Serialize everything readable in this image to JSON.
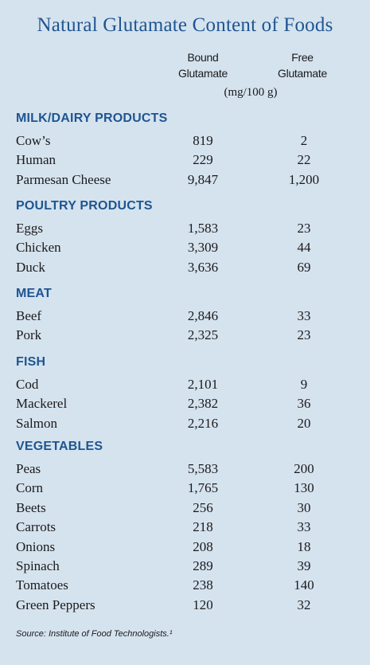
{
  "title": "Natural Glutamate Content of Foods",
  "columns": {
    "bound_line1": "Bound",
    "bound_line2": "Glutamate",
    "free_line1": "Free",
    "free_line2": "Glutamate",
    "unit": "(mg/100 g)"
  },
  "sections": [
    {
      "name": "MILK/DAIRY PRODUCTS",
      "rows": [
        {
          "food": "Cow’s",
          "bound": "819",
          "free": "2"
        },
        {
          "food": "Human",
          "bound": "229",
          "free": "22"
        },
        {
          "food": "Parmesan Cheese",
          "bound": "9,847",
          "free": "1,200"
        }
      ]
    },
    {
      "name": "POULTRY PRODUCTS",
      "rows": [
        {
          "food": "Eggs",
          "bound": "1,583",
          "free": "23"
        },
        {
          "food": "Chicken",
          "bound": "3,309",
          "free": "44"
        },
        {
          "food": "Duck",
          "bound": "3,636",
          "free": "69"
        }
      ]
    },
    {
      "name": "MEAT",
      "rows": [
        {
          "food": "Beef",
          "bound": "2,846",
          "free": "33"
        },
        {
          "food": "Pork",
          "bound": "2,325",
          "free": "23"
        }
      ]
    },
    {
      "name": "FISH",
      "rows": [
        {
          "food": "Cod",
          "bound": "2,101",
          "free": "9"
        },
        {
          "food": "Mackerel",
          "bound": "2,382",
          "free": "36"
        },
        {
          "food": "Salmon",
          "bound": "2,216",
          "free": "20"
        }
      ]
    },
    {
      "name": "VEGETABLES",
      "rows": [
        {
          "food": "Peas",
          "bound": "5,583",
          "free": "200"
        },
        {
          "food": "Corn",
          "bound": "1,765",
          "free": "130"
        },
        {
          "food": "Beets",
          "bound": "256",
          "free": "30"
        },
        {
          "food": "Carrots",
          "bound": "218",
          "free": "33"
        },
        {
          "food": "Onions",
          "bound": "208",
          "free": "18"
        },
        {
          "food": "Spinach",
          "bound": "289",
          "free": "39"
        },
        {
          "food": "Tomatoes",
          "bound": "238",
          "free": "140"
        },
        {
          "food": "Green Peppers",
          "bound": "120",
          "free": "32"
        }
      ]
    }
  ],
  "source": "Source: Institute of Food Technologists.¹"
}
